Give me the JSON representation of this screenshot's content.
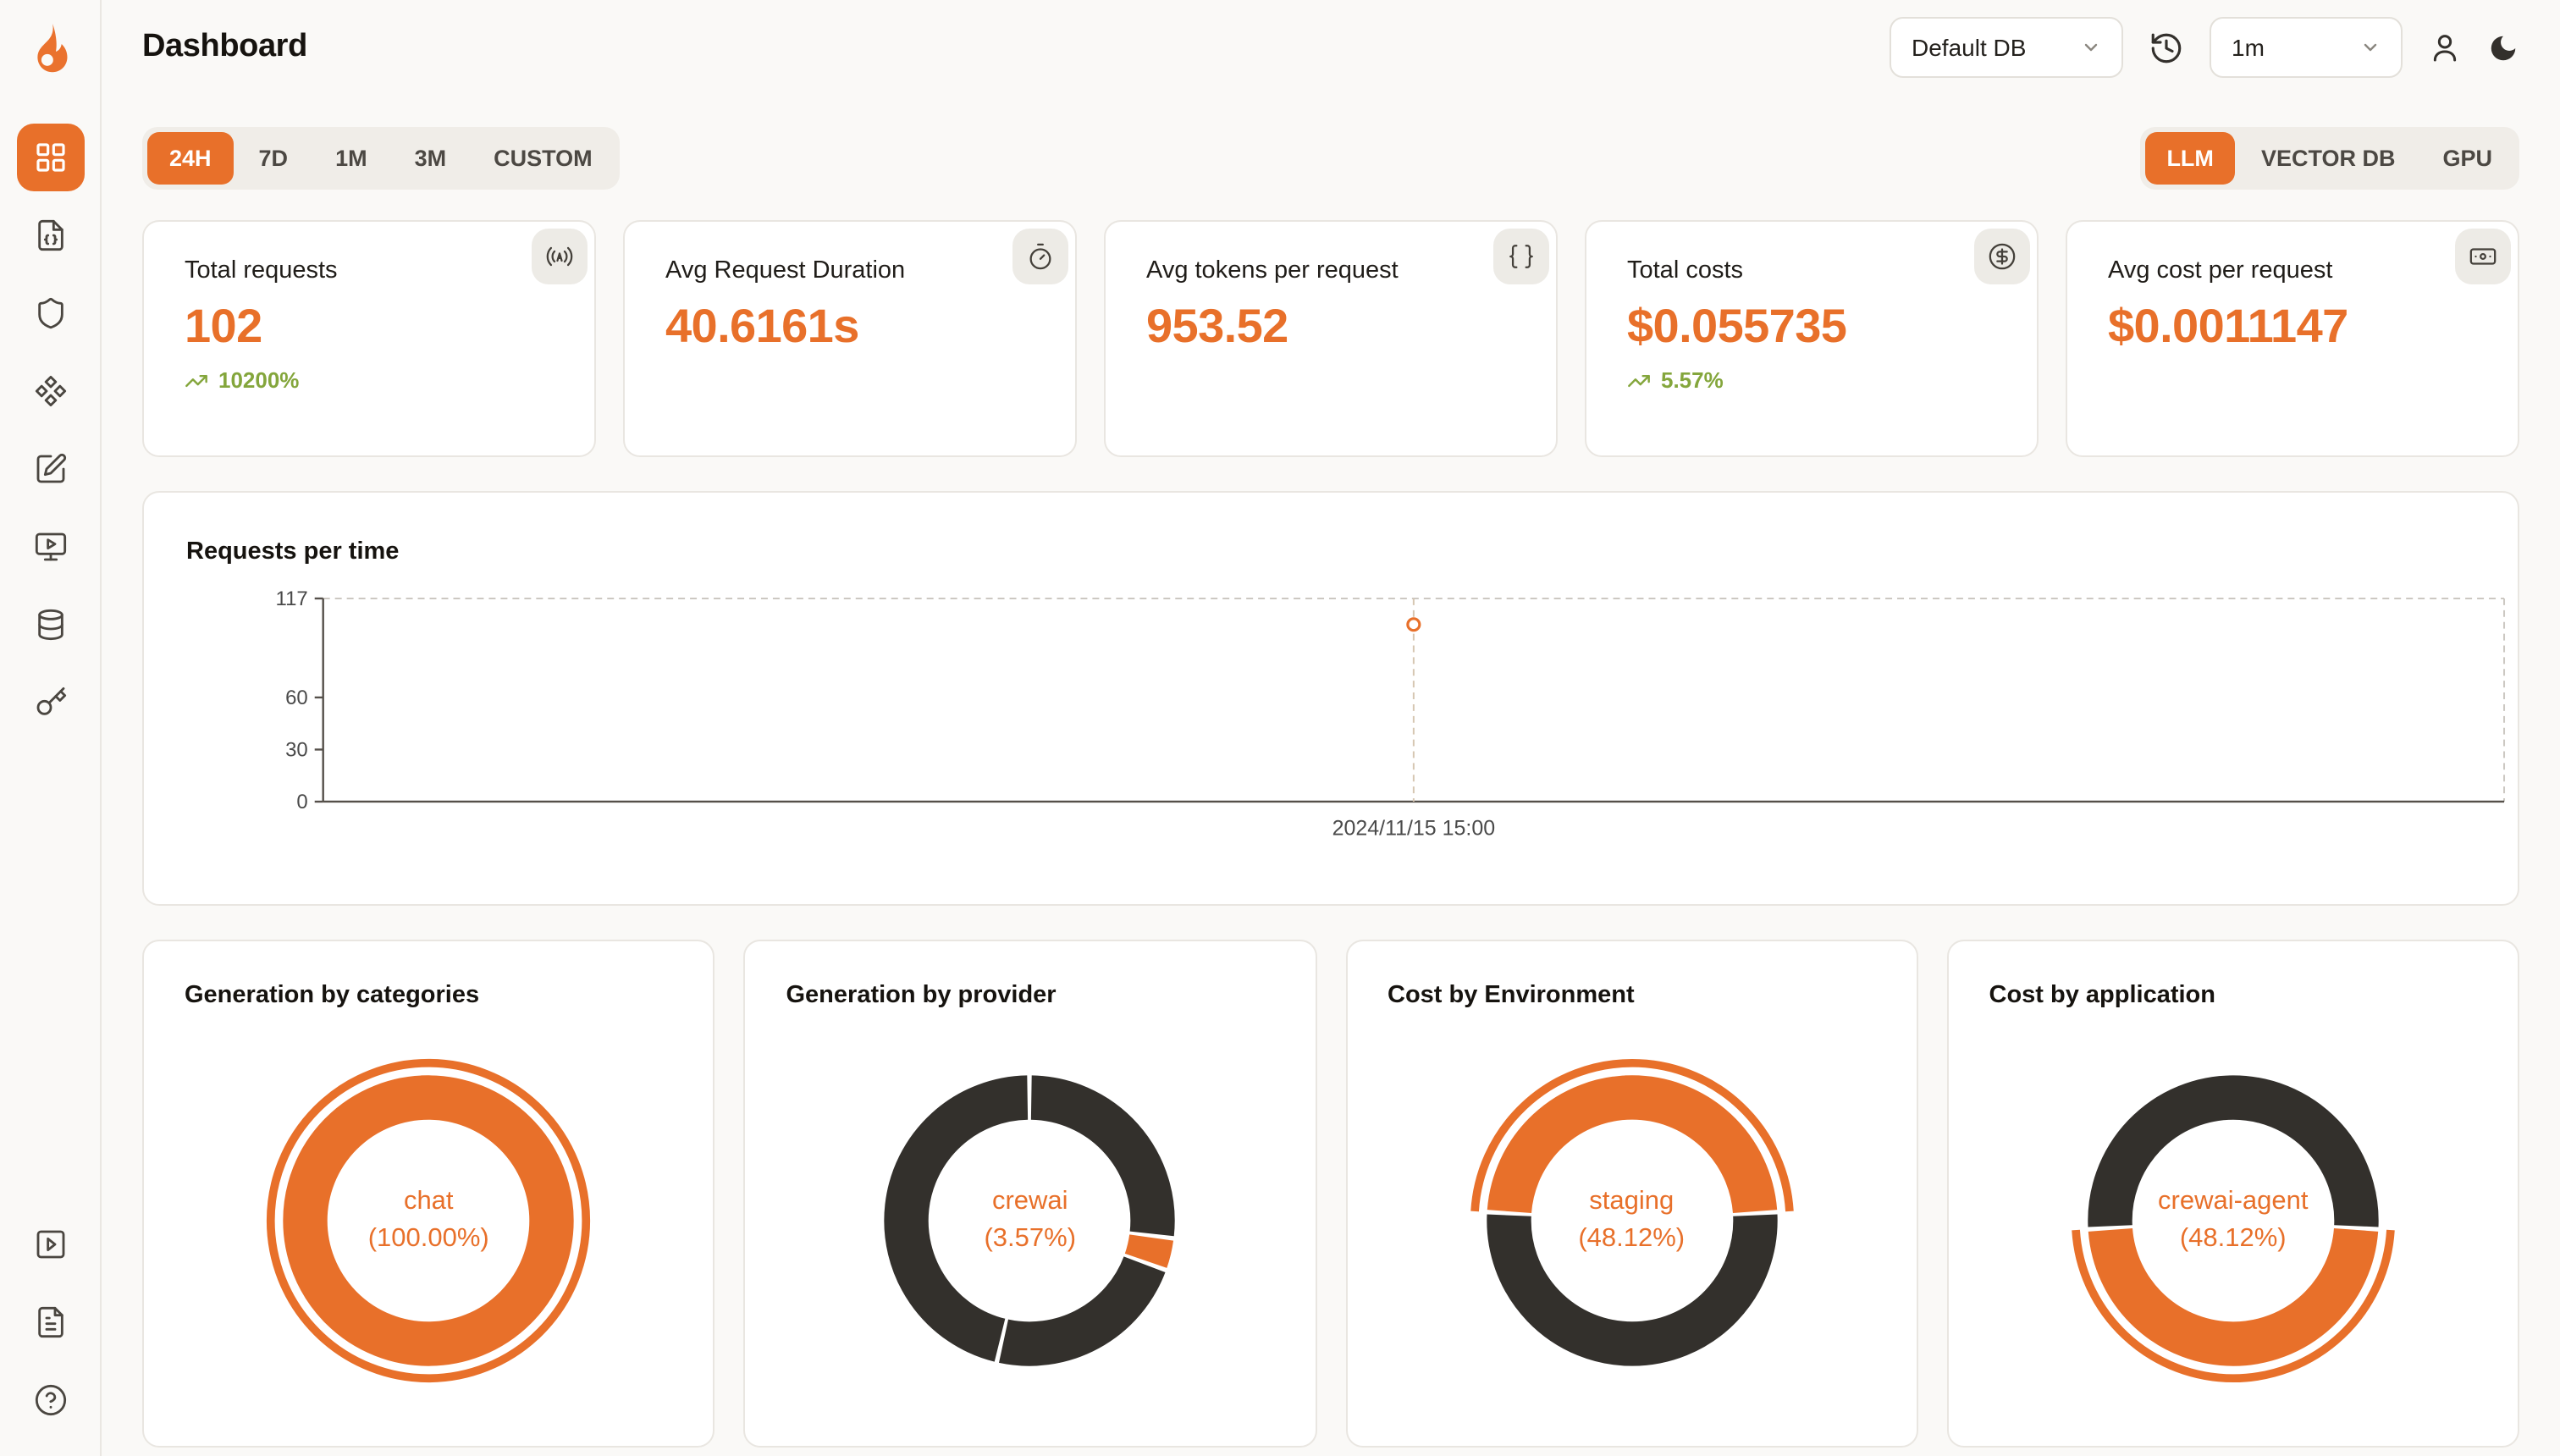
{
  "app": {
    "title": "Dashboard",
    "logo": "flame-logo"
  },
  "header": {
    "database_select": "Default DB",
    "interval_select": "1m",
    "icons": [
      "history-icon",
      "user-icon",
      "dark-mode-moon-icon"
    ]
  },
  "sidebar": {
    "top_icons": [
      "dashboard-grid-icon",
      "json-file-icon",
      "shield-icon",
      "components-icon",
      "square-pen-icon",
      "monitor-play-icon",
      "database-icon",
      "key-icon"
    ],
    "bottom_icons": [
      "play-square-icon",
      "file-text-icon",
      "help-circle-icon"
    ],
    "active_item": "dashboard"
  },
  "time_range_tabs": {
    "options": [
      "24H",
      "7D",
      "1M",
      "3M",
      "CUSTOM"
    ],
    "active": "24H"
  },
  "resource_tabs": {
    "options": [
      "LLM",
      "VECTOR DB",
      "GPU"
    ],
    "active": "LLM"
  },
  "stats": [
    {
      "label": "Total requests",
      "value": "102",
      "delta": "10200%",
      "delta_direction": "up",
      "icon": "broadcast-icon"
    },
    {
      "label": "Avg Request Duration",
      "value": "40.6161s",
      "icon": "timer-icon"
    },
    {
      "label": "Avg tokens per request",
      "value": "953.52",
      "icon": "braces-icon"
    },
    {
      "label": "Total costs",
      "value": "$0.055735",
      "delta": "5.57%",
      "delta_direction": "up",
      "icon": "circle-dollar-icon"
    },
    {
      "label": "Avg cost per request",
      "value": "$0.0011147",
      "icon": "banknote-icon"
    }
  ],
  "colors": {
    "accent": "#e8702a",
    "dark_segment": "#33302c",
    "positive": "#84a63c",
    "background": "#faf9f7"
  },
  "chart_data": [
    {
      "type": "line",
      "title": "Requests per time",
      "x": [
        "2024/11/15 15:00"
      ],
      "series": [
        {
          "name": "requests",
          "values": [
            102
          ]
        }
      ],
      "ylim": [
        0,
        117
      ],
      "yticks": [
        0,
        30,
        60,
        117
      ],
      "point_color": "#e8702a",
      "grid": "dashed-top-right-frame",
      "point_x_fraction": 0.5
    },
    {
      "type": "pie",
      "title": "Generation by categories",
      "center_label": "chat",
      "center_percent": "(100.00%)",
      "segments": [
        {
          "label": "chat",
          "percent": 100,
          "color": "#e8702a",
          "start_deg": 0,
          "end_deg": 360
        }
      ],
      "outer_arc": {
        "start_deg": 0,
        "end_deg": 360,
        "color": "#e8702a"
      }
    },
    {
      "type": "pie",
      "title": "Generation by provider",
      "center_label": "crewai",
      "center_percent": "(3.57%)",
      "segments": [
        {
          "color": "#33302c",
          "start_deg": 0,
          "end_deg": 97
        },
        {
          "label": "crewai",
          "percent": 3.57,
          "color": "#e8702a",
          "start_deg": 97,
          "end_deg": 109.9
        },
        {
          "color": "#33302c",
          "start_deg": 109.9,
          "end_deg": 193
        },
        {
          "color": "#33302c",
          "start_deg": 193,
          "end_deg": 360
        }
      ]
    },
    {
      "type": "pie",
      "title": "Cost by Environment",
      "center_label": "staging",
      "center_percent": "(48.12%)",
      "segments": [
        {
          "label": "staging",
          "percent": 48.12,
          "color": "#e8702a",
          "start_deg": -86.6,
          "end_deg": 86.6
        },
        {
          "percent": 51.88,
          "color": "#33302c",
          "start_deg": 86.6,
          "end_deg": 273.4
        }
      ],
      "outer_arc": {
        "start_deg": -86.6,
        "end_deg": 86.6,
        "color": "#e8702a"
      }
    },
    {
      "type": "pie",
      "title": "Cost by application",
      "center_label": "crewai-agent",
      "center_percent": "(48.12%)",
      "segments": [
        {
          "percent": 51.88,
          "color": "#33302c",
          "start_deg": 266.6,
          "end_deg": 453.4
        },
        {
          "label": "crewai-agent",
          "percent": 48.12,
          "color": "#e8702a",
          "start_deg": 93.4,
          "end_deg": 266.6
        }
      ],
      "outer_arc": {
        "start_deg": 93.4,
        "end_deg": 266.6,
        "color": "#e8702a"
      }
    }
  ]
}
